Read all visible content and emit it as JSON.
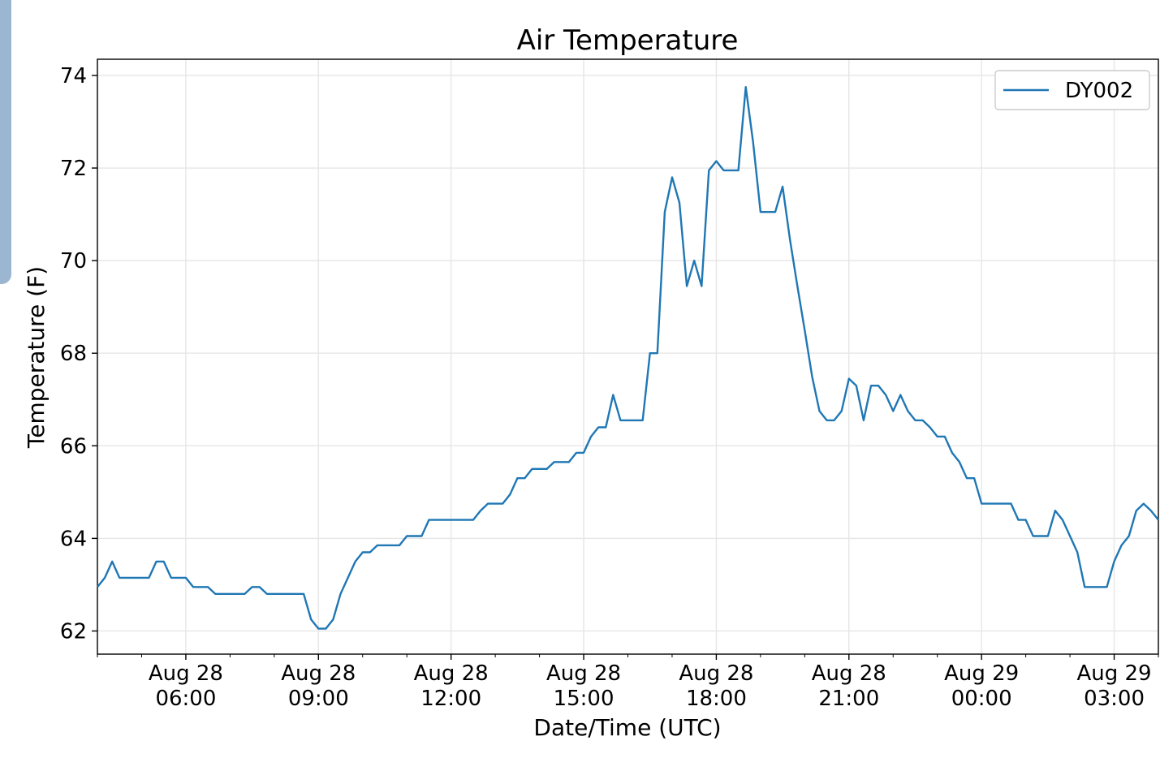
{
  "chart_data": {
    "type": "line",
    "title": "Air Temperature",
    "xlabel": "Date/Time (UTC)",
    "ylabel": "Temperature (F)",
    "ylim": [
      61.5,
      74.35
    ],
    "xlim": [
      "2019-08-28T04:00",
      "2019-08-29T04:00"
    ],
    "y_ticks": [
      62,
      64,
      66,
      68,
      70,
      72,
      74
    ],
    "x_ticks": [
      {
        "at": "2019-08-28T06:00",
        "line1": "Aug 28",
        "line2": "06:00"
      },
      {
        "at": "2019-08-28T09:00",
        "line1": "Aug 28",
        "line2": "09:00"
      },
      {
        "at": "2019-08-28T12:00",
        "line1": "Aug 28",
        "line2": "12:00"
      },
      {
        "at": "2019-08-28T15:00",
        "line1": "Aug 28",
        "line2": "15:00"
      },
      {
        "at": "2019-08-28T18:00",
        "line1": "Aug 28",
        "line2": "18:00"
      },
      {
        "at": "2019-08-28T21:00",
        "line1": "Aug 28",
        "line2": "21:00"
      },
      {
        "at": "2019-08-29T00:00",
        "line1": "Aug 29",
        "line2": "00:00"
      },
      {
        "at": "2019-08-29T03:00",
        "line1": "Aug 29",
        "line2": "03:00"
      }
    ],
    "grid": true,
    "legend_position": "top-right",
    "series": [
      {
        "name": "DY002",
        "color": "#1f77b4",
        "points": [
          [
            "2019-08-28T04:00",
            62.95
          ],
          [
            "2019-08-28T04:10",
            63.15
          ],
          [
            "2019-08-28T04:20",
            63.5
          ],
          [
            "2019-08-28T04:30",
            63.15
          ],
          [
            "2019-08-28T04:40",
            63.15
          ],
          [
            "2019-08-28T04:50",
            63.15
          ],
          [
            "2019-08-28T05:00",
            63.15
          ],
          [
            "2019-08-28T05:10",
            63.15
          ],
          [
            "2019-08-28T05:20",
            63.5
          ],
          [
            "2019-08-28T05:30",
            63.5
          ],
          [
            "2019-08-28T05:40",
            63.15
          ],
          [
            "2019-08-28T05:50",
            63.15
          ],
          [
            "2019-08-28T06:00",
            63.15
          ],
          [
            "2019-08-28T06:10",
            62.95
          ],
          [
            "2019-08-28T06:20",
            62.95
          ],
          [
            "2019-08-28T06:30",
            62.95
          ],
          [
            "2019-08-28T06:40",
            62.8
          ],
          [
            "2019-08-28T06:50",
            62.8
          ],
          [
            "2019-08-28T07:00",
            62.8
          ],
          [
            "2019-08-28T07:10",
            62.8
          ],
          [
            "2019-08-28T07:20",
            62.8
          ],
          [
            "2019-08-28T07:30",
            62.95
          ],
          [
            "2019-08-28T07:40",
            62.95
          ],
          [
            "2019-08-28T07:50",
            62.8
          ],
          [
            "2019-08-28T08:00",
            62.8
          ],
          [
            "2019-08-28T08:10",
            62.8
          ],
          [
            "2019-08-28T08:20",
            62.8
          ],
          [
            "2019-08-28T08:30",
            62.8
          ],
          [
            "2019-08-28T08:40",
            62.8
          ],
          [
            "2019-08-28T08:50",
            62.25
          ],
          [
            "2019-08-28T09:00",
            62.05
          ],
          [
            "2019-08-28T09:10",
            62.05
          ],
          [
            "2019-08-28T09:20",
            62.25
          ],
          [
            "2019-08-28T09:30",
            62.8
          ],
          [
            "2019-08-28T09:40",
            63.15
          ],
          [
            "2019-08-28T09:50",
            63.5
          ],
          [
            "2019-08-28T10:00",
            63.7
          ],
          [
            "2019-08-28T10:10",
            63.7
          ],
          [
            "2019-08-28T10:20",
            63.85
          ],
          [
            "2019-08-28T10:30",
            63.85
          ],
          [
            "2019-08-28T10:40",
            63.85
          ],
          [
            "2019-08-28T10:50",
            63.85
          ],
          [
            "2019-08-28T11:00",
            64.05
          ],
          [
            "2019-08-28T11:10",
            64.05
          ],
          [
            "2019-08-28T11:20",
            64.05
          ],
          [
            "2019-08-28T11:30",
            64.4
          ],
          [
            "2019-08-28T11:40",
            64.4
          ],
          [
            "2019-08-28T11:50",
            64.4
          ],
          [
            "2019-08-28T12:00",
            64.4
          ],
          [
            "2019-08-28T12:10",
            64.4
          ],
          [
            "2019-08-28T12:20",
            64.4
          ],
          [
            "2019-08-28T12:30",
            64.4
          ],
          [
            "2019-08-28T12:40",
            64.6
          ],
          [
            "2019-08-28T12:50",
            64.75
          ],
          [
            "2019-08-28T13:00",
            64.75
          ],
          [
            "2019-08-28T13:10",
            64.75
          ],
          [
            "2019-08-28T13:20",
            64.95
          ],
          [
            "2019-08-28T13:30",
            65.3
          ],
          [
            "2019-08-28T13:40",
            65.3
          ],
          [
            "2019-08-28T13:50",
            65.5
          ],
          [
            "2019-08-28T14:00",
            65.5
          ],
          [
            "2019-08-28T14:10",
            65.5
          ],
          [
            "2019-08-28T14:20",
            65.65
          ],
          [
            "2019-08-28T14:30",
            65.65
          ],
          [
            "2019-08-28T14:40",
            65.65
          ],
          [
            "2019-08-28T14:50",
            65.85
          ],
          [
            "2019-08-28T15:00",
            65.85
          ],
          [
            "2019-08-28T15:10",
            66.2
          ],
          [
            "2019-08-28T15:20",
            66.4
          ],
          [
            "2019-08-28T15:30",
            66.4
          ],
          [
            "2019-08-28T15:40",
            67.1
          ],
          [
            "2019-08-28T15:50",
            66.55
          ],
          [
            "2019-08-28T16:00",
            66.55
          ],
          [
            "2019-08-28T16:10",
            66.55
          ],
          [
            "2019-08-28T16:20",
            66.55
          ],
          [
            "2019-08-28T16:30",
            68.0
          ],
          [
            "2019-08-28T16:40",
            68.0
          ],
          [
            "2019-08-28T16:50",
            71.05
          ],
          [
            "2019-08-28T17:00",
            71.8
          ],
          [
            "2019-08-28T17:10",
            71.25
          ],
          [
            "2019-08-28T17:20",
            69.45
          ],
          [
            "2019-08-28T17:30",
            70.0
          ],
          [
            "2019-08-28T17:40",
            69.45
          ],
          [
            "2019-08-28T17:50",
            71.95
          ],
          [
            "2019-08-28T18:00",
            72.15
          ],
          [
            "2019-08-28T18:10",
            71.95
          ],
          [
            "2019-08-28T18:20",
            71.95
          ],
          [
            "2019-08-28T18:30",
            71.95
          ],
          [
            "2019-08-28T18:40",
            73.75
          ],
          [
            "2019-08-28T18:50",
            72.55
          ],
          [
            "2019-08-28T19:00",
            71.05
          ],
          [
            "2019-08-28T19:10",
            71.05
          ],
          [
            "2019-08-28T19:20",
            71.05
          ],
          [
            "2019-08-28T19:30",
            71.6
          ],
          [
            "2019-08-28T19:40",
            70.45
          ],
          [
            "2019-08-28T19:50",
            69.45
          ],
          [
            "2019-08-28T20:00",
            68.5
          ],
          [
            "2019-08-28T20:10",
            67.5
          ],
          [
            "2019-08-28T20:20",
            66.75
          ],
          [
            "2019-08-28T20:30",
            66.55
          ],
          [
            "2019-08-28T20:40",
            66.55
          ],
          [
            "2019-08-28T20:50",
            66.75
          ],
          [
            "2019-08-28T21:00",
            67.45
          ],
          [
            "2019-08-28T21:10",
            67.3
          ],
          [
            "2019-08-28T21:20",
            66.55
          ],
          [
            "2019-08-28T21:30",
            67.3
          ],
          [
            "2019-08-28T21:40",
            67.3
          ],
          [
            "2019-08-28T21:50",
            67.1
          ],
          [
            "2019-08-28T22:00",
            66.75
          ],
          [
            "2019-08-28T22:10",
            67.1
          ],
          [
            "2019-08-28T22:20",
            66.75
          ],
          [
            "2019-08-28T22:30",
            66.55
          ],
          [
            "2019-08-28T22:40",
            66.55
          ],
          [
            "2019-08-28T22:50",
            66.4
          ],
          [
            "2019-08-28T23:00",
            66.2
          ],
          [
            "2019-08-28T23:10",
            66.2
          ],
          [
            "2019-08-28T23:20",
            65.85
          ],
          [
            "2019-08-28T23:30",
            65.65
          ],
          [
            "2019-08-28T23:40",
            65.3
          ],
          [
            "2019-08-28T23:50",
            65.3
          ],
          [
            "2019-08-29T00:00",
            64.75
          ],
          [
            "2019-08-29T00:10",
            64.75
          ],
          [
            "2019-08-29T00:20",
            64.75
          ],
          [
            "2019-08-29T00:30",
            64.75
          ],
          [
            "2019-08-29T00:40",
            64.75
          ],
          [
            "2019-08-29T00:50",
            64.4
          ],
          [
            "2019-08-29T01:00",
            64.4
          ],
          [
            "2019-08-29T01:10",
            64.05
          ],
          [
            "2019-08-29T01:20",
            64.05
          ],
          [
            "2019-08-29T01:30",
            64.05
          ],
          [
            "2019-08-29T01:40",
            64.6
          ],
          [
            "2019-08-29T01:50",
            64.4
          ],
          [
            "2019-08-29T02:00",
            64.05
          ],
          [
            "2019-08-29T02:10",
            63.7
          ],
          [
            "2019-08-29T02:20",
            62.95
          ],
          [
            "2019-08-29T02:30",
            62.95
          ],
          [
            "2019-08-29T02:40",
            62.95
          ],
          [
            "2019-08-29T02:50",
            62.95
          ],
          [
            "2019-08-29T03:00",
            63.5
          ],
          [
            "2019-08-29T03:10",
            63.85
          ],
          [
            "2019-08-29T03:20",
            64.05
          ],
          [
            "2019-08-29T03:30",
            64.6
          ],
          [
            "2019-08-29T03:40",
            64.75
          ],
          [
            "2019-08-29T03:50",
            64.6
          ],
          [
            "2019-08-29T04:00",
            64.4
          ]
        ]
      }
    ]
  }
}
